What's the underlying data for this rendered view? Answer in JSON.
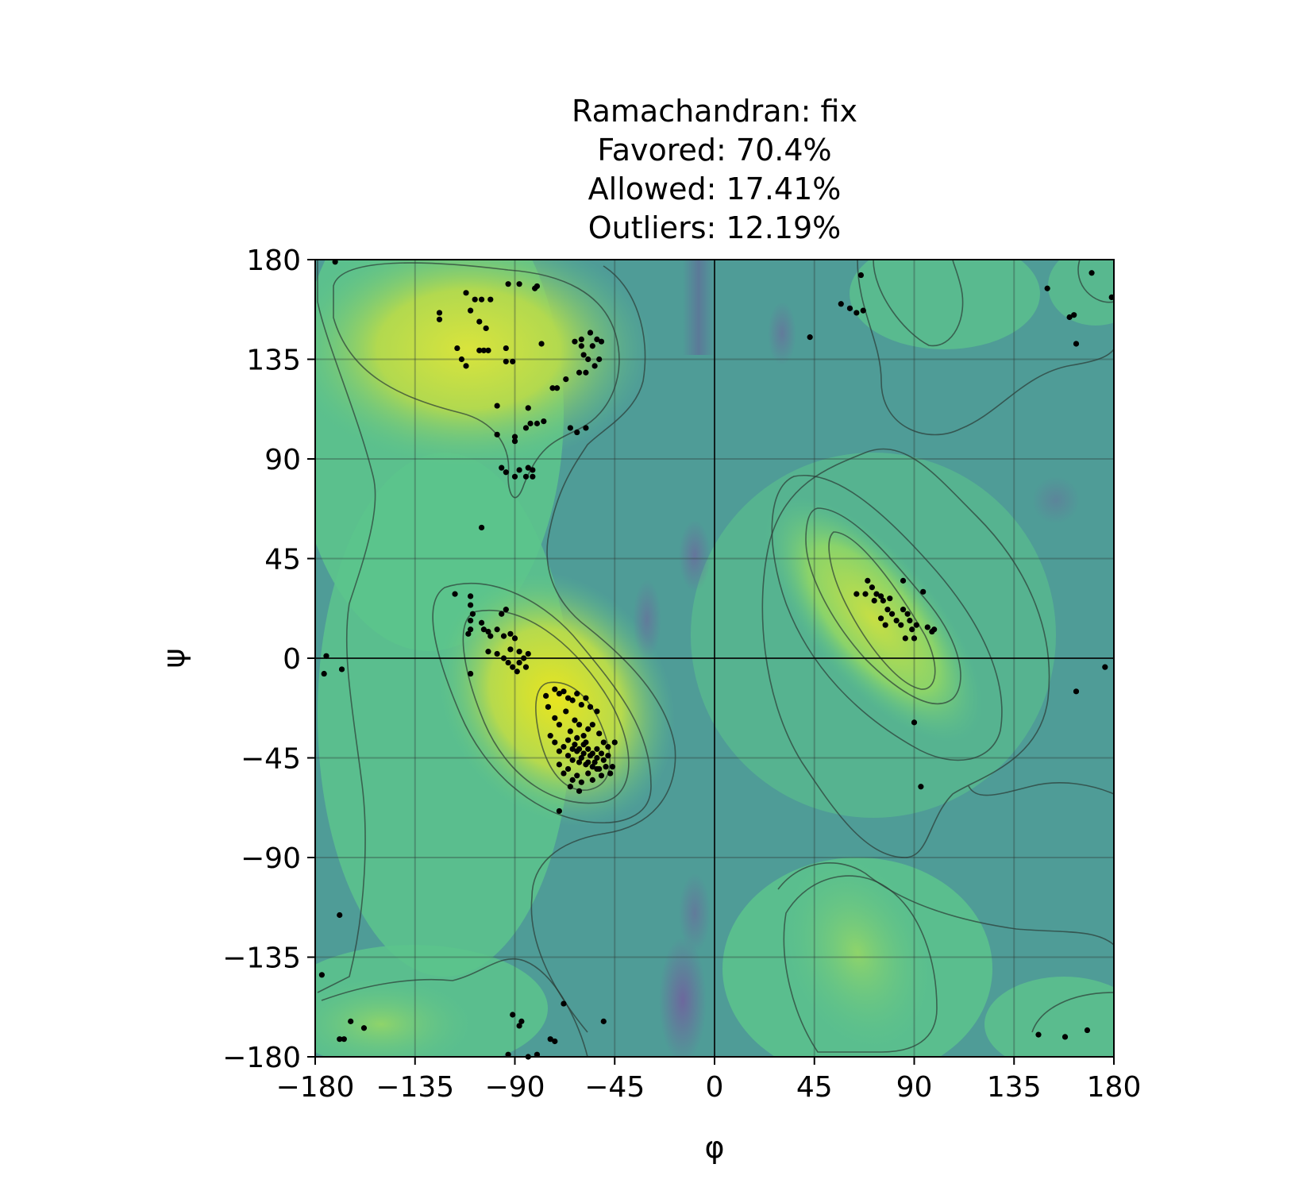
{
  "chart_data": {
    "type": "scatter",
    "title_lines": [
      "Ramachandran: fix",
      "Favored: 70.4%",
      "Allowed: 17.41%",
      "Outliers: 12.19%"
    ],
    "xlabel": "φ",
    "ylabel": "ψ",
    "xlim": [
      -180,
      180
    ],
    "ylim": [
      -180,
      180
    ],
    "xticks": [
      -180,
      -135,
      -90,
      -45,
      0,
      45,
      90,
      135,
      180
    ],
    "yticks": [
      -180,
      -135,
      -90,
      -45,
      0,
      45,
      90,
      135,
      180
    ],
    "xtick_labels": [
      "−180",
      "−135",
      "−90",
      "−45",
      "0",
      "45",
      "90",
      "135",
      "180"
    ],
    "ytick_labels": [
      "−180",
      "−135",
      "−90",
      "−45",
      "0",
      "45",
      "90",
      "135",
      "180"
    ],
    "grid": true,
    "background": "viridis probability density heatmap with contour lines",
    "colors": {
      "points": "#000000",
      "grid": "#2f3b3a",
      "low_density": "#4a8f9a",
      "mid_density": "#5cc48c",
      "high_density": "#d8e23c",
      "very_low": "#7a5aa0"
    },
    "points": [
      [
        -171,
        179
      ],
      [
        -88,
        169
      ],
      [
        -81,
        167
      ],
      [
        -80,
        168
      ],
      [
        -93,
        169
      ],
      [
        -112,
        165
      ],
      [
        -108,
        162
      ],
      [
        -105,
        162
      ],
      [
        -101,
        162
      ],
      [
        -124,
        156
      ],
      [
        -124,
        153
      ],
      [
        -110,
        157
      ],
      [
        -106,
        152
      ],
      [
        -103,
        149
      ],
      [
        -116,
        140
      ],
      [
        -114,
        135
      ],
      [
        -112,
        132
      ],
      [
        -106,
        139
      ],
      [
        -102,
        139
      ],
      [
        -104,
        139
      ],
      [
        -94,
        140
      ],
      [
        -91,
        134
      ],
      [
        -94,
        134
      ],
      [
        -78,
        142
      ],
      [
        -63,
        143
      ],
      [
        -60,
        141
      ],
      [
        -56,
        147
      ],
      [
        -53,
        144
      ],
      [
        -55,
        141
      ],
      [
        -51,
        143
      ],
      [
        -59,
        137
      ],
      [
        -57,
        135
      ],
      [
        -54,
        132
      ],
      [
        -52,
        135
      ],
      [
        -61,
        129
      ],
      [
        -58,
        129
      ],
      [
        -60,
        144
      ],
      [
        -73,
        122
      ],
      [
        -71,
        122
      ],
      [
        -67,
        126
      ],
      [
        -98,
        114
      ],
      [
        -84,
        113
      ],
      [
        -83,
        106
      ],
      [
        -85,
        104
      ],
      [
        -80,
        106
      ],
      [
        -77,
        107
      ],
      [
        -65,
        104
      ],
      [
        -62,
        102
      ],
      [
        -58,
        104
      ],
      [
        -98,
        101
      ],
      [
        -90,
        98
      ],
      [
        -90,
        100
      ],
      [
        -96,
        86
      ],
      [
        -94,
        84
      ],
      [
        -88,
        85
      ],
      [
        -84,
        86
      ],
      [
        -82,
        85
      ],
      [
        -90,
        82
      ],
      [
        -85,
        82
      ],
      [
        -82,
        82
      ],
      [
        -105,
        59
      ],
      [
        -117,
        29
      ],
      [
        -110,
        28
      ],
      [
        -110,
        24
      ],
      [
        -109,
        20
      ],
      [
        -110,
        17
      ],
      [
        -105,
        16
      ],
      [
        -104,
        13
      ],
      [
        -102,
        12
      ],
      [
        -111,
        11
      ],
      [
        -101,
        10
      ],
      [
        -110,
        13
      ],
      [
        -96,
        20
      ],
      [
        -94,
        22
      ],
      [
        -98,
        13
      ],
      [
        -95,
        10
      ],
      [
        -92,
        11
      ],
      [
        -90,
        9
      ],
      [
        -92,
        4
      ],
      [
        -88,
        3
      ],
      [
        -84,
        2
      ],
      [
        -86,
        0
      ],
      [
        -102,
        3
      ],
      [
        -98,
        2
      ],
      [
        -95,
        0
      ],
      [
        -93,
        -2
      ],
      [
        -91,
        -4
      ],
      [
        -88,
        -2
      ],
      [
        -85,
        -4
      ],
      [
        -89,
        -6
      ],
      [
        -110,
        -7
      ],
      [
        -70,
        -69
      ],
      [
        -76,
        -17
      ],
      [
        -72,
        -14
      ],
      [
        -70,
        -16
      ],
      [
        -68,
        -15
      ],
      [
        -66,
        -18
      ],
      [
        -64,
        -19
      ],
      [
        -62,
        -16
      ],
      [
        -60,
        -21
      ],
      [
        -58,
        -18
      ],
      [
        -56,
        -22
      ],
      [
        -53,
        -24
      ],
      [
        -75,
        -22
      ],
      [
        -72,
        -27
      ],
      [
        -70,
        -30
      ],
      [
        -67,
        -24
      ],
      [
        -65,
        -33
      ],
      [
        -63,
        -28
      ],
      [
        -61,
        -30
      ],
      [
        -59,
        -35
      ],
      [
        -57,
        -32
      ],
      [
        -55,
        -30
      ],
      [
        -52,
        -34
      ],
      [
        -50,
        -38
      ],
      [
        -48,
        -40
      ],
      [
        -45,
        -38
      ],
      [
        -74,
        -35
      ],
      [
        -72,
        -38
      ],
      [
        -70,
        -42
      ],
      [
        -68,
        -40
      ],
      [
        -66,
        -44
      ],
      [
        -64,
        -46
      ],
      [
        -62,
        -42
      ],
      [
        -60,
        -45
      ],
      [
        -58,
        -48
      ],
      [
        -56,
        -44
      ],
      [
        -54,
        -47
      ],
      [
        -52,
        -50
      ],
      [
        -50,
        -46
      ],
      [
        -48,
        -44
      ],
      [
        -46,
        -49
      ],
      [
        -70,
        -48
      ],
      [
        -68,
        -52
      ],
      [
        -66,
        -50
      ],
      [
        -64,
        -55
      ],
      [
        -62,
        -53
      ],
      [
        -60,
        -56
      ],
      [
        -57,
        -52
      ],
      [
        -55,
        -55
      ],
      [
        -53,
        -50
      ],
      [
        -51,
        -53
      ],
      [
        -49,
        -49
      ],
      [
        -47,
        -52
      ],
      [
        -61,
        -60
      ],
      [
        -65,
        -58
      ],
      [
        -63,
        -39
      ],
      [
        -61,
        -41
      ],
      [
        -59,
        -39
      ],
      [
        -57,
        -41
      ],
      [
        -55,
        -43
      ],
      [
        -53,
        -41
      ],
      [
        -51,
        -43
      ],
      [
        -59,
        -43
      ],
      [
        -61,
        -47
      ],
      [
        -57,
        -47
      ],
      [
        -55,
        -49
      ],
      [
        -53,
        -45
      ],
      [
        -62,
        -36
      ],
      [
        -66,
        -37
      ],
      [
        -64,
        -41
      ],
      [
        -58,
        -38
      ],
      [
        -175,
        1
      ],
      [
        -176,
        -7
      ],
      [
        -168,
        -5
      ],
      [
        -169,
        -116
      ],
      [
        -177,
        -143
      ],
      [
        -164,
        -164
      ],
      [
        -158,
        -167
      ],
      [
        -167,
        -172
      ],
      [
        -169,
        -172
      ],
      [
        -91,
        -161
      ],
      [
        -88,
        -166
      ],
      [
        -87,
        -164
      ],
      [
        -93,
        -179
      ],
      [
        -84,
        -180
      ],
      [
        -80,
        -179
      ],
      [
        -74,
        -172
      ],
      [
        -72,
        -173
      ],
      [
        -68,
        -156
      ],
      [
        -50,
        -164
      ],
      [
        43,
        145
      ],
      [
        57,
        160
      ],
      [
        61,
        158
      ],
      [
        64,
        156
      ],
      [
        67,
        157
      ],
      [
        66,
        173
      ],
      [
        69,
        35
      ],
      [
        64,
        29
      ],
      [
        68,
        29
      ],
      [
        71,
        32
      ],
      [
        73,
        29
      ],
      [
        72,
        26
      ],
      [
        75,
        28
      ],
      [
        76,
        26
      ],
      [
        79,
        27
      ],
      [
        78,
        22
      ],
      [
        75,
        18
      ],
      [
        77,
        15
      ],
      [
        80,
        20
      ],
      [
        82,
        17
      ],
      [
        85,
        22
      ],
      [
        84,
        15
      ],
      [
        87,
        20
      ],
      [
        88,
        17
      ],
      [
        89,
        13
      ],
      [
        86,
        9
      ],
      [
        90,
        9
      ],
      [
        91,
        15
      ],
      [
        94,
        30
      ],
      [
        85,
        35
      ],
      [
        98,
        12
      ],
      [
        96,
        14
      ],
      [
        99,
        13
      ],
      [
        90,
        -29
      ],
      [
        93,
        -58
      ],
      [
        150,
        167
      ],
      [
        160,
        154
      ],
      [
        162,
        155
      ],
      [
        163,
        142
      ],
      [
        170,
        174
      ],
      [
        179,
        163
      ],
      [
        176,
        -4
      ],
      [
        163,
        -15
      ],
      [
        146,
        -170
      ],
      [
        158,
        -171
      ],
      [
        168,
        -168
      ]
    ]
  }
}
